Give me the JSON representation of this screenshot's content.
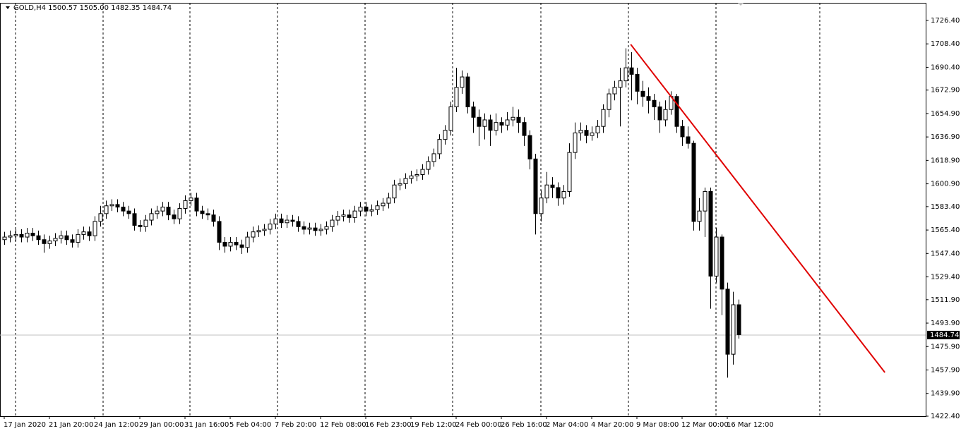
{
  "chart_data": {
    "type": "candlestick",
    "title": "GOLD,H4  1500.57 1505.00 1482.35 1484.74",
    "categories": [
      "17 Jan 2020",
      null,
      null,
      null,
      null,
      null,
      null,
      null,
      "21 Jan 20:00",
      null,
      null,
      null,
      null,
      null,
      null,
      null,
      "24 Jan 12:00",
      null,
      null,
      null,
      null,
      null,
      null,
      null,
      "29 Jan 00:00",
      null,
      null,
      null,
      null,
      null,
      null,
      null,
      "31 Jan 16:00",
      null,
      null,
      null,
      null,
      null,
      null,
      null,
      "5 Feb 04:00",
      null,
      null,
      null,
      null,
      null,
      null,
      null,
      "7 Feb 20:00",
      null,
      null,
      null,
      null,
      null,
      null,
      null,
      "12 Feb 08:00",
      null,
      null,
      null,
      null,
      null,
      null,
      null,
      "16 Feb 23:00",
      null,
      null,
      null,
      null,
      null,
      null,
      null,
      "19 Feb 12:00",
      null,
      null,
      null,
      null,
      null,
      null,
      null,
      "24 Feb 00:00",
      null,
      null,
      null,
      null,
      null,
      null,
      null,
      "26 Feb 16:00",
      null,
      null,
      null,
      null,
      null,
      null,
      null,
      "2 Mar 04:00",
      null,
      null,
      null,
      null,
      null,
      null,
      null,
      "4 Mar 20:00",
      null,
      null,
      null,
      null,
      null,
      null,
      null,
      "9 Mar 08:00",
      null,
      null,
      null,
      null,
      null,
      null,
      null,
      "12 Mar 00:00",
      null,
      null,
      null,
      null,
      null,
      null,
      null,
      "16 Mar 12:00",
      null,
      null
    ],
    "open": [
      1558,
      1560,
      1561,
      1562,
      1560,
      1563,
      1561,
      1558,
      1555,
      1557,
      1559,
      1561,
      1558,
      1556,
      1562,
      1564,
      1561,
      1572,
      1578,
      1584,
      1585,
      1583,
      1580,
      1578,
      1569,
      1568,
      1573,
      1578,
      1580,
      1583,
      1577,
      1574,
      1582,
      1588,
      1590,
      1580,
      1578,
      1577,
      1572,
      1556,
      1553,
      1556,
      1554,
      1552,
      1560,
      1564,
      1565,
      1566,
      1570,
      1574,
      1571,
      1573,
      1572,
      1568,
      1566,
      1567,
      1565,
      1566,
      1568,
      1573,
      1576,
      1577,
      1575,
      1580,
      1583,
      1580,
      1581,
      1584,
      1586,
      1590,
      1600,
      1601,
      1605,
      1607,
      1608,
      1612,
      1618,
      1624,
      1635,
      1642,
      1660,
      1675,
      1683,
      1660,
      1652,
      1645,
      1650,
      1642,
      1648,
      1646,
      1650,
      1652,
      1648,
      1638,
      1620,
      1578,
      1590,
      1600,
      1598,
      1590,
      1595,
      1625,
      1640,
      1642,
      1638,
      1640,
      1645,
      1658,
      1670,
      1675,
      1680,
      1690,
      1685,
      1672,
      1668,
      1665,
      1660,
      1650,
      1658,
      1668,
      1645,
      1637,
      1632,
      1572,
      1580,
      1595,
      1530,
      1560,
      1520,
      1470,
      1508
    ],
    "high": [
      1564,
      1565,
      1566,
      1566,
      1567,
      1567,
      1565,
      1562,
      1561,
      1563,
      1565,
      1565,
      1562,
      1566,
      1568,
      1568,
      1576,
      1584,
      1588,
      1589,
      1589,
      1587,
      1584,
      1582,
      1573,
      1577,
      1582,
      1584,
      1587,
      1587,
      1581,
      1586,
      1592,
      1594,
      1594,
      1584,
      1582,
      1581,
      1576,
      1560,
      1560,
      1560,
      1558,
      1564,
      1568,
      1569,
      1570,
      1574,
      1578,
      1578,
      1577,
      1577,
      1576,
      1572,
      1571,
      1571,
      1570,
      1572,
      1577,
      1580,
      1581,
      1581,
      1584,
      1587,
      1587,
      1585,
      1588,
      1590,
      1594,
      1604,
      1605,
      1609,
      1611,
      1612,
      1616,
      1622,
      1628,
      1639,
      1646,
      1664,
      1690,
      1688,
      1686,
      1664,
      1658,
      1655,
      1654,
      1655,
      1652,
      1656,
      1660,
      1658,
      1652,
      1642,
      1624,
      1596,
      1610,
      1606,
      1602,
      1600,
      1632,
      1648,
      1648,
      1646,
      1645,
      1650,
      1662,
      1674,
      1680,
      1690,
      1705,
      1702,
      1690,
      1680,
      1675,
      1670,
      1664,
      1665,
      1672,
      1670,
      1650,
      1645,
      1634,
      1590,
      1598,
      1598,
      1567,
      1562,
      1525,
      1518,
      1512
    ],
    "low": [
      1554,
      1556,
      1557,
      1556,
      1556,
      1557,
      1554,
      1548,
      1551,
      1553,
      1555,
      1554,
      1552,
      1552,
      1558,
      1557,
      1557,
      1568,
      1574,
      1580,
      1579,
      1576,
      1574,
      1565,
      1564,
      1564,
      1569,
      1574,
      1576,
      1573,
      1570,
      1570,
      1578,
      1584,
      1576,
      1574,
      1573,
      1568,
      1550,
      1548,
      1549,
      1550,
      1547,
      1548,
      1556,
      1560,
      1561,
      1562,
      1566,
      1567,
      1567,
      1568,
      1564,
      1562,
      1562,
      1561,
      1561,
      1562,
      1564,
      1569,
      1572,
      1571,
      1571,
      1576,
      1576,
      1576,
      1577,
      1580,
      1582,
      1586,
      1596,
      1597,
      1601,
      1603,
      1604,
      1608,
      1614,
      1620,
      1631,
      1638,
      1656,
      1670,
      1655,
      1640,
      1630,
      1635,
      1630,
      1638,
      1640,
      1642,
      1645,
      1640,
      1630,
      1612,
      1562,
      1572,
      1586,
      1590,
      1584,
      1585,
      1591,
      1620,
      1634,
      1632,
      1634,
      1636,
      1640,
      1652,
      1665,
      1645,
      1675,
      1665,
      1662,
      1660,
      1655,
      1650,
      1640,
      1645,
      1654,
      1640,
      1630,
      1628,
      1565,
      1565,
      1560,
      1505,
      1525,
      1500,
      1452,
      1462,
      1482
    ],
    "close": [
      1560,
      1561,
      1562,
      1560,
      1563,
      1561,
      1558,
      1555,
      1557,
      1559,
      1561,
      1558,
      1556,
      1562,
      1564,
      1561,
      1572,
      1578,
      1584,
      1585,
      1583,
      1580,
      1578,
      1569,
      1568,
      1573,
      1578,
      1580,
      1583,
      1577,
      1574,
      1582,
      1588,
      1590,
      1580,
      1578,
      1577,
      1572,
      1556,
      1553,
      1556,
      1554,
      1552,
      1560,
      1564,
      1565,
      1566,
      1570,
      1574,
      1571,
      1573,
      1572,
      1568,
      1566,
      1567,
      1565,
      1566,
      1568,
      1573,
      1576,
      1577,
      1575,
      1580,
      1583,
      1580,
      1581,
      1584,
      1586,
      1590,
      1600,
      1601,
      1605,
      1607,
      1608,
      1612,
      1618,
      1624,
      1635,
      1642,
      1660,
      1675,
      1683,
      1660,
      1652,
      1645,
      1650,
      1642,
      1648,
      1646,
      1650,
      1652,
      1648,
      1638,
      1620,
      1578,
      1590,
      1600,
      1598,
      1590,
      1595,
      1625,
      1640,
      1642,
      1638,
      1640,
      1645,
      1658,
      1670,
      1675,
      1680,
      1690,
      1685,
      1672,
      1668,
      1665,
      1660,
      1650,
      1658,
      1668,
      1645,
      1637,
      1632,
      1572,
      1580,
      1595,
      1530,
      1560,
      1520,
      1470,
      1508,
      1485
    ],
    "ylim": [
      1422.4,
      1742.1
    ],
    "yticks": [
      {
        "value": 1726.4,
        "label": "1726.40"
      },
      {
        "value": 1708.4,
        "label": "1708.40"
      },
      {
        "value": 1690.4,
        "label": "1690.40"
      },
      {
        "value": 1672.9,
        "label": "1672.90"
      },
      {
        "value": 1654.9,
        "label": "1654.90"
      },
      {
        "value": 1636.9,
        "label": "1636.90"
      },
      {
        "value": 1618.9,
        "label": "1618.90"
      },
      {
        "value": 1600.9,
        "label": "1600.90"
      },
      {
        "value": 1583.4,
        "label": "1583.40"
      },
      {
        "value": 1565.4,
        "label": "1565.40"
      },
      {
        "value": 1547.4,
        "label": "1547.40"
      },
      {
        "value": 1529.4,
        "label": "1529.40"
      },
      {
        "value": 1511.9,
        "label": "1511.90"
      },
      {
        "value": 1493.9,
        "label": "1493.90"
      },
      {
        "value": 1475.9,
        "label": "1475.90"
      },
      {
        "value": 1457.9,
        "label": "1457.90"
      },
      {
        "value": 1439.9,
        "label": "1439.90"
      },
      {
        "value": 1422.4,
        "label": "1422.40"
      }
    ],
    "current_price": {
      "value": 1484.74,
      "label": "1484.74"
    },
    "trendline": {
      "color": "#e00000",
      "x": [
        110.9,
        155.9
      ],
      "y": [
        1708,
        1456
      ]
    }
  }
}
